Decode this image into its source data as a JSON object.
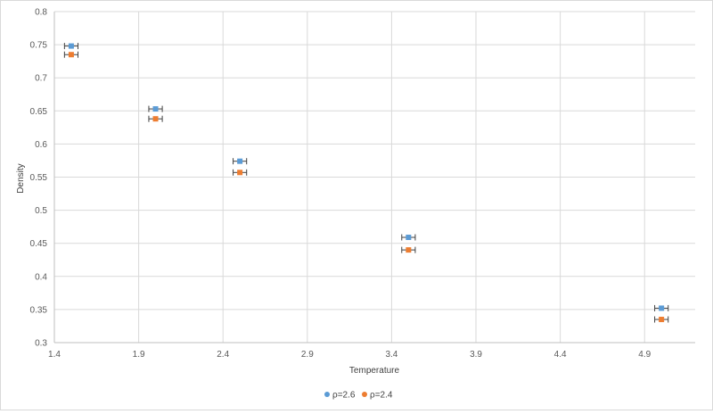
{
  "chart_data": {
    "type": "scatter",
    "title": "",
    "xlabel": "Temperature",
    "ylabel": "Density",
    "xlim": [
      1.4,
      5.2
    ],
    "ylim": [
      0.3,
      0.8
    ],
    "xticks": [
      "1.4",
      "1.9",
      "2.4",
      "2.9",
      "3.4",
      "3.9",
      "4.4",
      "4.9"
    ],
    "yticks": [
      "0.3",
      "0.35",
      "0.4",
      "0.45",
      "0.5",
      "0.55",
      "0.6",
      "0.65",
      "0.7",
      "0.75",
      "0.8"
    ],
    "grid": "vertical and horizontal major gridlines",
    "legend_position": "bottom",
    "error_bars": "horizontal",
    "series": [
      {
        "name": "ρ=2.6",
        "color": "#5b9bd5",
        "x": [
          1.5,
          2.0,
          2.5,
          3.5,
          5.0
        ],
        "y": [
          0.748,
          0.653,
          0.574,
          0.459,
          0.352
        ],
        "x_error": [
          0.04,
          0.04,
          0.04,
          0.04,
          0.04
        ]
      },
      {
        "name": "ρ=2.4",
        "color": "#ed7d31",
        "x": [
          1.5,
          2.0,
          2.5,
          3.5,
          5.0
        ],
        "y": [
          0.735,
          0.638,
          0.557,
          0.44,
          0.335
        ],
        "x_error": [
          0.04,
          0.04,
          0.04,
          0.04,
          0.04
        ]
      }
    ]
  }
}
